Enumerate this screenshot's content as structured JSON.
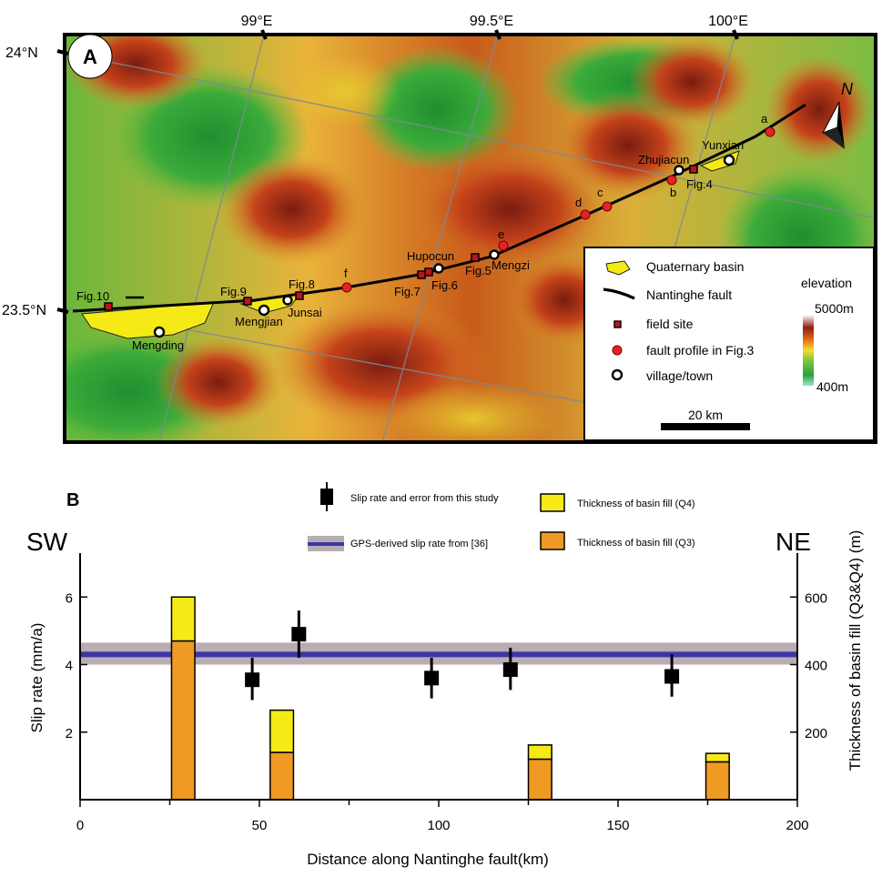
{
  "map": {
    "panel_label": "A",
    "lon_labels": [
      "99°E",
      "99.5°E",
      "100°E"
    ],
    "lat_labels": [
      "24°N",
      "23.5°N"
    ],
    "north_label": "N",
    "places": [
      {
        "name": "Mengding",
        "kind": "village"
      },
      {
        "name": "Mengjian",
        "kind": "village"
      },
      {
        "name": "Junsai",
        "kind": "village"
      },
      {
        "name": "Hupocun",
        "kind": "village"
      },
      {
        "name": "Mengzi",
        "kind": "village"
      },
      {
        "name": "Zhujiacun",
        "kind": "village"
      },
      {
        "name": "Yunxian",
        "kind": "village"
      }
    ],
    "field_sites": [
      "Fig.10",
      "Fig.9",
      "Fig.8",
      "Fig.7",
      "Fig.6",
      "Fig.5",
      "Fig.4"
    ],
    "profiles": [
      "a",
      "b",
      "c",
      "d",
      "e",
      "f"
    ],
    "legend": {
      "basin": "Quaternary basin",
      "fault": "Nantinghe fault",
      "field_site": "field site",
      "profile": "fault profile in Fig.3",
      "village": "village/town",
      "elevation_title": "elevation",
      "elevation_max": "5000m",
      "elevation_min": "400m",
      "scale": "20 km"
    }
  },
  "chart": {
    "panel_label": "B",
    "sw_label": "SW",
    "ne_label": "NE",
    "legend": {
      "slip": "Slip rate and error from this study",
      "gps": "GPS-derived slip rate from [36]",
      "q4": "Thickness of basin fill (Q4)",
      "q3": "Thickness of basin fill (Q3)"
    },
    "colors": {
      "q4": "#f5ea16",
      "q3": "#ef9a22",
      "gps_line": "#3d35a8",
      "gps_band": "#b8adb3"
    }
  },
  "chart_data": {
    "type": "bar",
    "xlabel": "Distance along Nantinghe fault(km)",
    "ylabel": "Slip rate (mm/a)",
    "ylabel_right": "Thickness of basin fill  (Q3&Q4) (m)",
    "xlim": [
      0,
      200
    ],
    "ylim": [
      0,
      7.3
    ],
    "ylim_right": [
      0,
      730
    ],
    "xticks": [
      "0",
      "50",
      "100",
      "150",
      "200"
    ],
    "yticks": [
      "2",
      "4",
      "6"
    ],
    "yticks_right": [
      "200",
      "400",
      "600"
    ],
    "slip_rates": [
      {
        "x": 48,
        "y": 3.55,
        "err_low": 0.6,
        "err_high": 0.65
      },
      {
        "x": 61,
        "y": 4.9,
        "err_low": 0.7,
        "err_high": 0.7
      },
      {
        "x": 98,
        "y": 3.6,
        "err_low": 0.6,
        "err_high": 0.6
      },
      {
        "x": 120,
        "y": 3.85,
        "err_low": 0.6,
        "err_high": 0.65
      },
      {
        "x": 165,
        "y": 3.65,
        "err_low": 0.6,
        "err_high": 0.65
      }
    ],
    "gps_rate": {
      "value": 4.3,
      "low": 4.0,
      "high": 4.65
    },
    "basin_fill": [
      {
        "x_start": 25.5,
        "x_end": 32,
        "q3": 470,
        "q4": 130
      },
      {
        "x_start": 53,
        "x_end": 59.5,
        "q3": 140,
        "q4": 125
      },
      {
        "x_start": 125,
        "x_end": 131.5,
        "q3": 120,
        "q4": 42
      },
      {
        "x_start": 174.5,
        "x_end": 181,
        "q3": 112,
        "q4": 25
      }
    ]
  }
}
